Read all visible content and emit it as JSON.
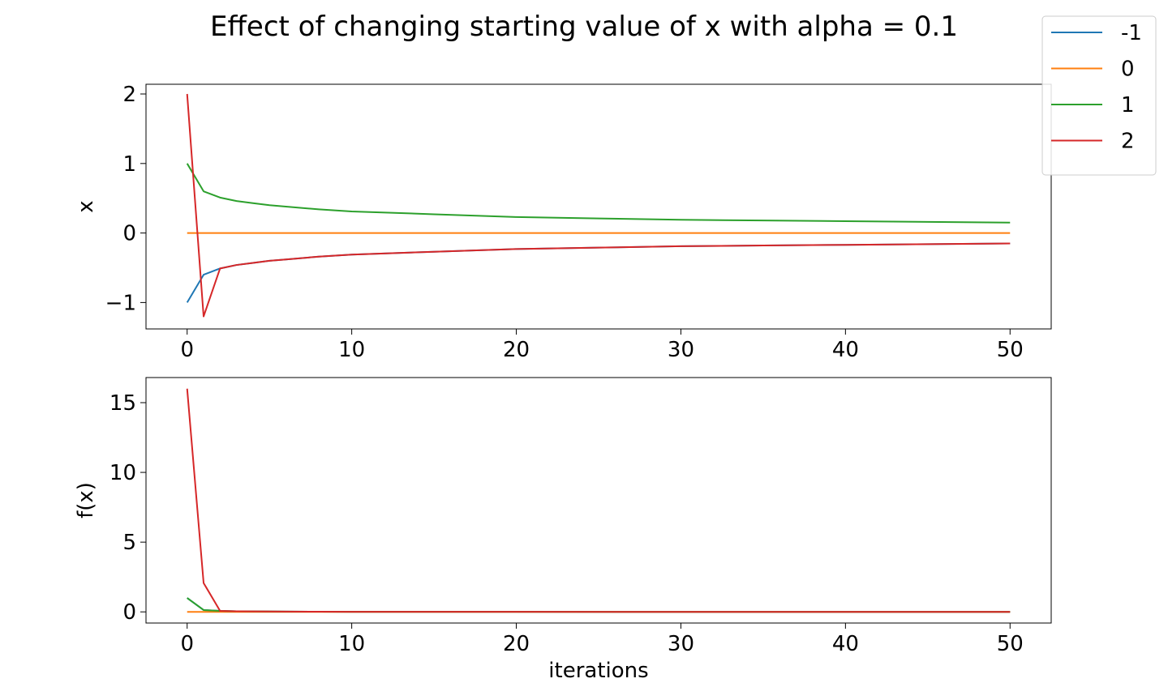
{
  "figure": {
    "title": "Effect of changing starting value of x with alpha = 0.1",
    "legend_title": "",
    "legend_placement": "top-right"
  },
  "colors": {
    "series_-1": "#1f77b4",
    "series_0": "#ff7f0e",
    "series_1": "#2ca02c",
    "series_2": "#d62728",
    "axes": "#000000",
    "background": "#ffffff"
  },
  "chart_data": [
    {
      "type": "line",
      "panel": "top",
      "title": "",
      "xlabel": "",
      "ylabel": "x",
      "xlim": [
        -2.5,
        52.5
      ],
      "ylim": [
        -1.38,
        2.14
      ],
      "xticks": [
        0,
        10,
        20,
        30,
        40,
        50
      ],
      "xtick_labels": [
        "0",
        "10",
        "20",
        "30",
        "40",
        "50"
      ],
      "yticks": [
        -1,
        0,
        1,
        2
      ],
      "ytick_labels": [
        "−1",
        "0",
        "1",
        "2"
      ],
      "grid": false,
      "series": [
        {
          "name": "-1",
          "x": [
            0,
            1,
            2,
            3,
            4,
            5,
            6,
            8,
            10,
            15,
            20,
            25,
            30,
            35,
            40,
            45,
            50
          ],
          "values": [
            -1.0,
            -0.6,
            -0.51,
            -0.46,
            -0.43,
            -0.4,
            -0.38,
            -0.34,
            -0.31,
            -0.27,
            -0.23,
            -0.21,
            -0.19,
            -0.18,
            -0.17,
            -0.16,
            -0.15
          ]
        },
        {
          "name": "0",
          "x": [
            0,
            50
          ],
          "values": [
            0.0,
            0.0
          ]
        },
        {
          "name": "1",
          "x": [
            0,
            1,
            2,
            3,
            4,
            5,
            6,
            8,
            10,
            15,
            20,
            25,
            30,
            35,
            40,
            45,
            50
          ],
          "values": [
            1.0,
            0.6,
            0.51,
            0.46,
            0.43,
            0.4,
            0.38,
            0.34,
            0.31,
            0.27,
            0.23,
            0.21,
            0.19,
            0.18,
            0.17,
            0.16,
            0.15
          ]
        },
        {
          "name": "2",
          "x": [
            0,
            1,
            2,
            3,
            4,
            5,
            6,
            8,
            10,
            15,
            20,
            25,
            30,
            35,
            40,
            45,
            50
          ],
          "values": [
            2.0,
            -1.2,
            -0.51,
            -0.46,
            -0.43,
            -0.4,
            -0.38,
            -0.34,
            -0.31,
            -0.27,
            -0.23,
            -0.21,
            -0.19,
            -0.18,
            -0.17,
            -0.16,
            -0.15
          ]
        }
      ]
    },
    {
      "type": "line",
      "panel": "bottom",
      "title": "",
      "xlabel": "iterations",
      "ylabel": "f(x)",
      "xlim": [
        -2.5,
        52.5
      ],
      "ylim": [
        -0.8,
        16.8
      ],
      "xticks": [
        0,
        10,
        20,
        30,
        40,
        50
      ],
      "xtick_labels": [
        "0",
        "10",
        "20",
        "30",
        "40",
        "50"
      ],
      "yticks": [
        0,
        5,
        10,
        15
      ],
      "ytick_labels": [
        "0",
        "5",
        "10",
        "15"
      ],
      "grid": false,
      "series": [
        {
          "name": "-1",
          "x": [
            0,
            1,
            2,
            3,
            4,
            5,
            6,
            8,
            10,
            15,
            20,
            30,
            40,
            50
          ],
          "values": [
            1.0,
            0.13,
            0.07,
            0.045,
            0.034,
            0.026,
            0.021,
            0.013,
            0.009,
            0.005,
            0.003,
            0.0013,
            0.0008,
            0.0005
          ]
        },
        {
          "name": "0",
          "x": [
            0,
            50
          ],
          "values": [
            0.0,
            0.0
          ]
        },
        {
          "name": "1",
          "x": [
            0,
            1,
            2,
            3,
            4,
            5,
            6,
            8,
            10,
            15,
            20,
            30,
            40,
            50
          ],
          "values": [
            1.0,
            0.13,
            0.07,
            0.045,
            0.034,
            0.026,
            0.021,
            0.013,
            0.009,
            0.005,
            0.003,
            0.0013,
            0.0008,
            0.0005
          ]
        },
        {
          "name": "2",
          "x": [
            0,
            1,
            2,
            3,
            4,
            5,
            6,
            8,
            10,
            15,
            20,
            30,
            40,
            50
          ],
          "values": [
            16.0,
            2.07,
            0.07,
            0.045,
            0.034,
            0.026,
            0.021,
            0.013,
            0.009,
            0.005,
            0.003,
            0.0013,
            0.0008,
            0.0005
          ]
        }
      ]
    }
  ]
}
